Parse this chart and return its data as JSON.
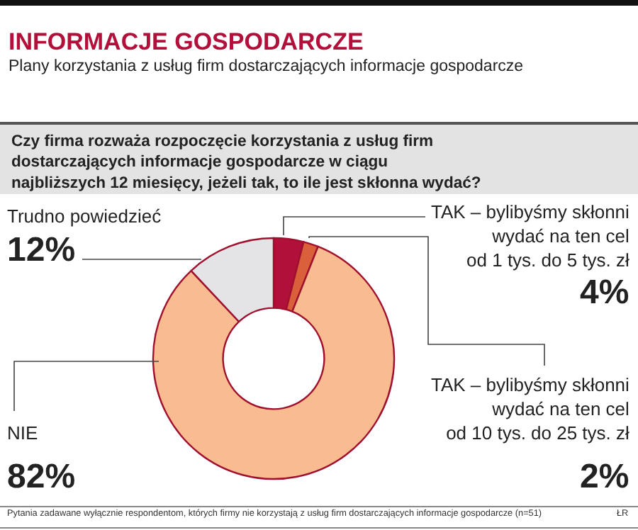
{
  "chart_data": {
    "type": "donut",
    "title": "INFORMACJE GOSPODARCZE",
    "subtitle": "Plany korzystania z usług firm dostarczających informacje gospodarcze",
    "annotations": [
      "Czy firma rozważa rozpoczęcie korzystania z usług firm\ndostarczających informacje gospodarcze w ciągu\nnajbliższych 12 miesięcy, jeżeli tak, to ile jest skłonna wydać?",
      "Pytania zadawane wyłącznie respondentom, których firmy nie korzystają z usług firm dostarczających informacje gospodarcze (n=51)",
      "ŁR"
    ],
    "categories": [
      "TAK – bylibyśmy skłonni\nwydać na ten cel\nod 1 tys. do 5 tys. zł",
      "TAK – bylibyśmy skłonni\nwydać na ten cel\nod 10 tys. do 25 tys. zł",
      "NIE",
      "Trudno powiedzieć"
    ],
    "values": [
      4,
      2,
      82,
      12
    ],
    "value_labels": [
      "4%",
      "2%",
      "82%",
      "12%"
    ],
    "colors": [
      "#b0103a",
      "#d9603a",
      "#f9bb90",
      "#e4e4e6"
    ],
    "legend": false
  }
}
